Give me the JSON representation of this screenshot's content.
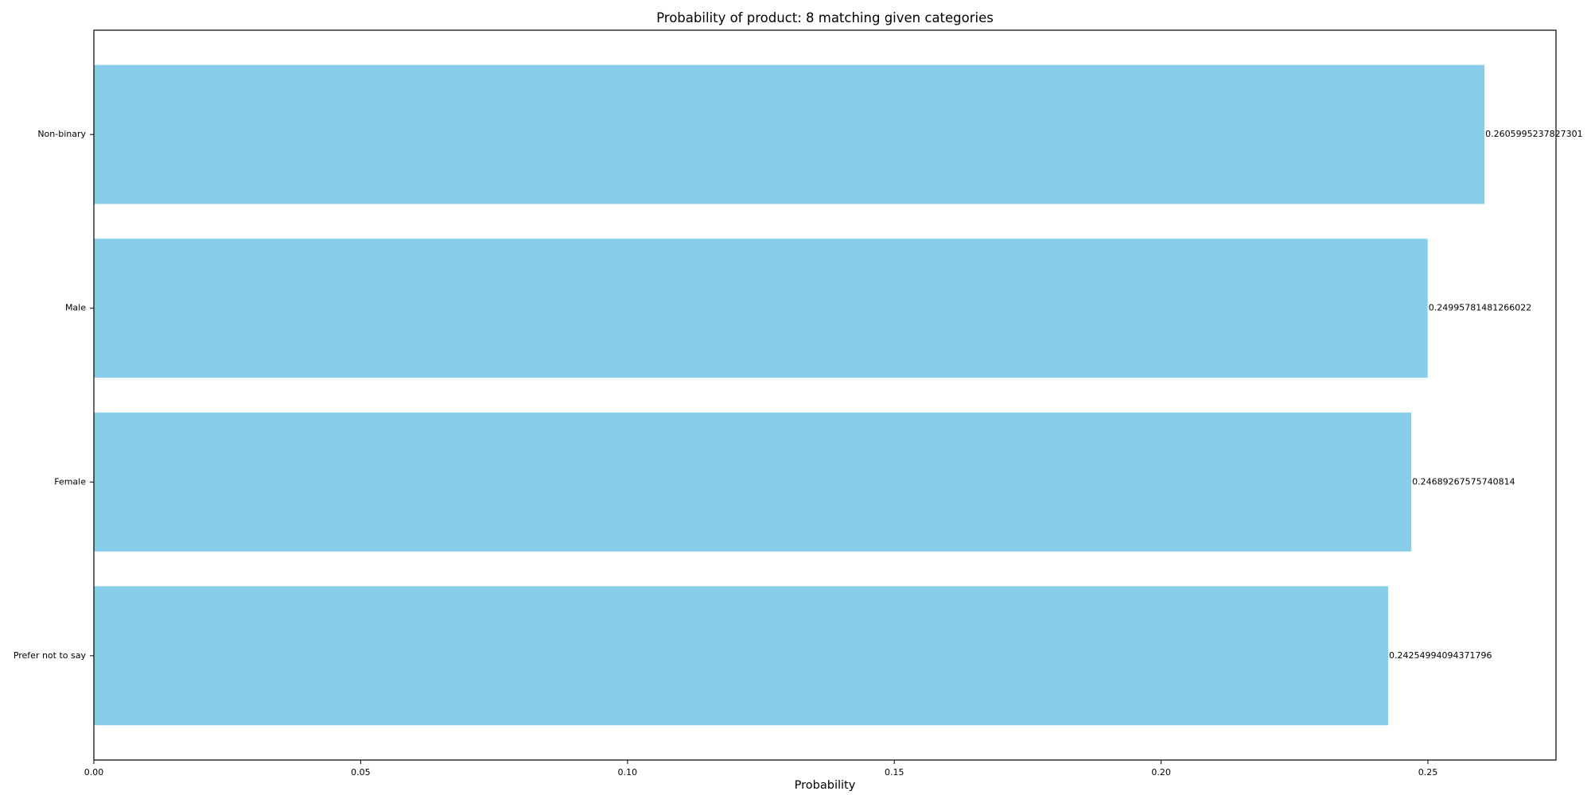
{
  "chart_data": {
    "type": "bar",
    "orientation": "horizontal",
    "title": "Probability of product: 8 matching given categories",
    "xlabel": "Probability",
    "ylabel": "",
    "xlim": [
      0,
      0.274
    ],
    "xticks": [
      0.0,
      0.05,
      0.1,
      0.15,
      0.2,
      0.25
    ],
    "xtick_labels": [
      "0.00",
      "0.05",
      "0.10",
      "0.15",
      "0.20",
      "0.25"
    ],
    "categories": [
      "Non-binary",
      "Male",
      "Female",
      "Prefer not to say"
    ],
    "values": [
      0.2605995237827301,
      0.24995781481266022,
      0.24689267575740814,
      0.24254994094371796
    ],
    "value_labels": [
      "0.2605995237827301",
      "0.24995781481266022",
      "0.24689267575740814",
      "0.24254994094371796"
    ],
    "bar_color": "#87ceeb",
    "grid": false,
    "legend": "none"
  }
}
